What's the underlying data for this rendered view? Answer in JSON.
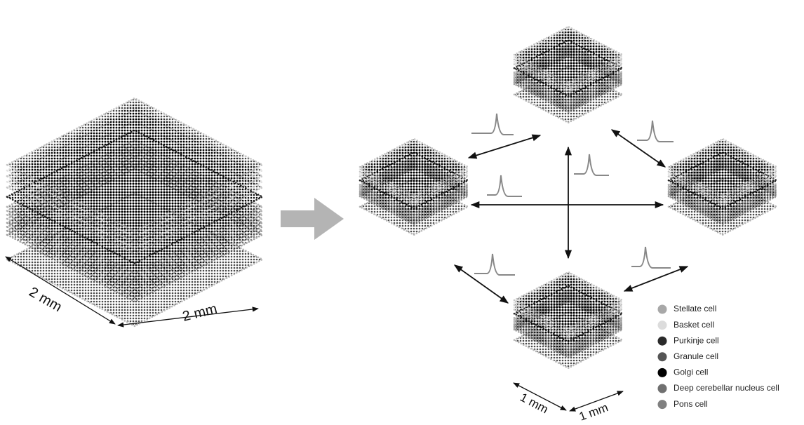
{
  "scale_large": {
    "width": "2 mm",
    "depth": "2 mm"
  },
  "scale_small": {
    "width": "1 mm",
    "depth": "1 mm"
  },
  "legend": {
    "items": [
      {
        "label": "Stellate cell",
        "color": "#a8a8a8"
      },
      {
        "label": "Basket cell",
        "color": "#dcdcdc"
      },
      {
        "label": "Purkinje cell",
        "color": "#2a2a2a"
      },
      {
        "label": "Granule cell",
        "color": "#555555"
      },
      {
        "label": "Golgi cell",
        "color": "#000000"
      },
      {
        "label": "Deep cerebellar nucleus cell",
        "color": "#707070"
      },
      {
        "label": "Pons cell",
        "color": "#808080"
      }
    ]
  }
}
